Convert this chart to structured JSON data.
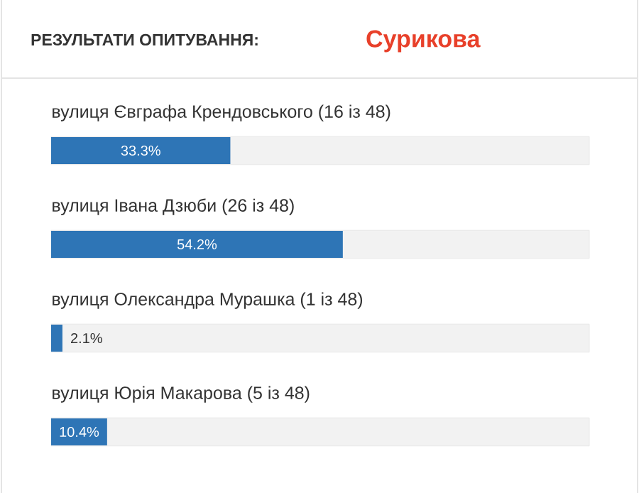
{
  "chart_data": {
    "type": "bar",
    "orientation": "horizontal",
    "title": "РЕЗУЛЬТАТИ ОПИТУВАННЯ:",
    "subtitle": "Сурикова",
    "categories": [
      "вулиця Євграфа Крендовського (16 із 48)",
      "вулиця Івана Дзюби (26 із 48)",
      "вулиця Олександра Мурашка (1 із 48)",
      "вулиця Юрія Макарова (5 із 48)"
    ],
    "values": [
      33.3,
      54.2,
      2.1,
      10.4
    ],
    "value_labels": [
      "33.3%",
      "54.2%",
      "2.1%",
      "10.4%"
    ],
    "color": "#2e75b6",
    "xlim": [
      0,
      100
    ]
  }
}
